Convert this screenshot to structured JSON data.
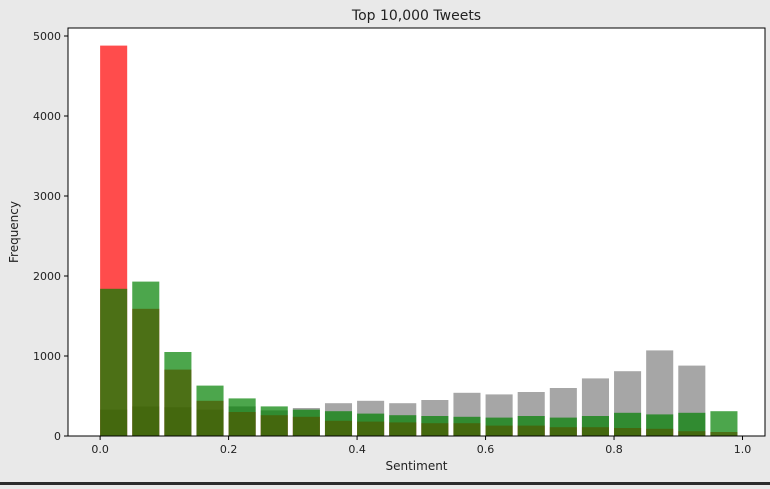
{
  "chart_data": {
    "type": "bar",
    "title": "Top 10,000 Tweets",
    "xlabel": "Sentiment",
    "ylabel": "Frequency",
    "xlim": [
      -0.05,
      1.035
    ],
    "ylim": [
      0,
      5100
    ],
    "x_ticks": [
      0.0,
      0.2,
      0.4,
      0.6,
      0.8,
      1.0
    ],
    "x_tick_labels": [
      "0.0",
      "0.2",
      "0.4",
      "0.6",
      "0.8",
      "1.0"
    ],
    "y_ticks": [
      0,
      1000,
      2000,
      3000,
      4000,
      5000
    ],
    "y_tick_labels": [
      "0",
      "1000",
      "2000",
      "3000",
      "4000",
      "5000"
    ],
    "bin_width": 0.049,
    "bin_starts": [
      0.0,
      0.05,
      0.1,
      0.15,
      0.2,
      0.25,
      0.3,
      0.35,
      0.4,
      0.45,
      0.5,
      0.55,
      0.6,
      0.65,
      0.7,
      0.75,
      0.8,
      0.85,
      0.9,
      0.95
    ],
    "bar_width_fraction": 0.86,
    "series": [
      {
        "color": "#808080",
        "opacity": 0.7,
        "values": [
          330,
          370,
          360,
          330,
          370,
          320,
          350,
          410,
          440,
          410,
          450,
          540,
          520,
          550,
          600,
          720,
          810,
          1070,
          880,
          0
        ]
      },
      {
        "color": "#ff0000",
        "opacity": 0.7,
        "values": [
          4880,
          1590,
          830,
          440,
          300,
          260,
          240,
          190,
          180,
          170,
          160,
          160,
          130,
          130,
          110,
          110,
          100,
          90,
          60,
          50
        ]
      },
      {
        "color": "#008000",
        "opacity": 0.7,
        "values": [
          1840,
          1930,
          1050,
          630,
          470,
          370,
          330,
          310,
          280,
          260,
          250,
          240,
          230,
          250,
          230,
          250,
          290,
          270,
          290,
          310
        ]
      }
    ]
  }
}
